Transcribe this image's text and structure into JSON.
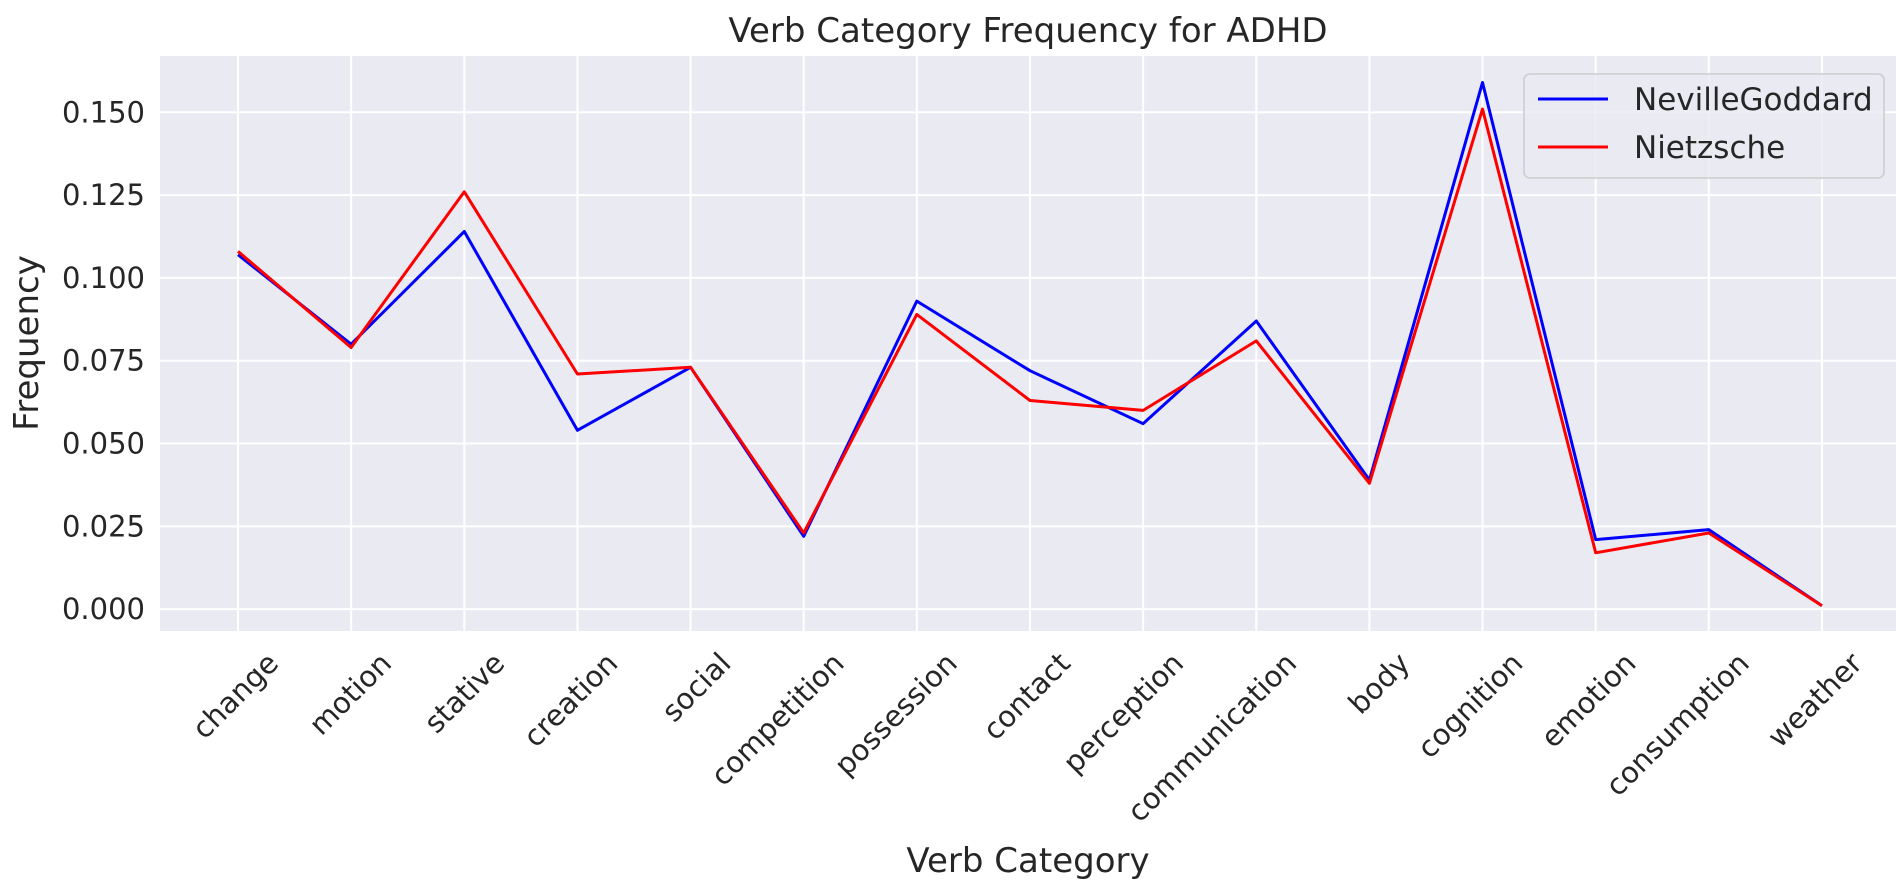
{
  "chart_data": {
    "type": "line",
    "title": "Verb Category Frequency for ADHD",
    "xlabel": "Verb Category",
    "ylabel": "Frequency",
    "categories": [
      "change",
      "motion",
      "stative",
      "creation",
      "social",
      "competition",
      "possession",
      "contact",
      "perception",
      "communication",
      "body",
      "cognition",
      "emotion",
      "consumption",
      "weather"
    ],
    "series": [
      {
        "name": "NevilleGoddard",
        "color": "#0000ff",
        "values": [
          0.107,
          0.08,
          0.114,
          0.054,
          0.073,
          0.022,
          0.093,
          0.072,
          0.056,
          0.087,
          0.039,
          0.159,
          0.021,
          0.024,
          0.001
        ]
      },
      {
        "name": "Nietzsche",
        "color": "#ff0000",
        "values": [
          0.108,
          0.079,
          0.126,
          0.071,
          0.073,
          0.023,
          0.089,
          0.063,
          0.06,
          0.081,
          0.038,
          0.151,
          0.017,
          0.023,
          0.001
        ]
      }
    ],
    "ylim": [
      -0.0066,
      0.167
    ],
    "yticks": [
      "0.000",
      "0.025",
      "0.050",
      "0.075",
      "0.100",
      "0.125",
      "0.150"
    ],
    "grid": true,
    "legend_position": "top-right",
    "background_color": "#eaeaf2",
    "grid_color": "#ffffff"
  }
}
